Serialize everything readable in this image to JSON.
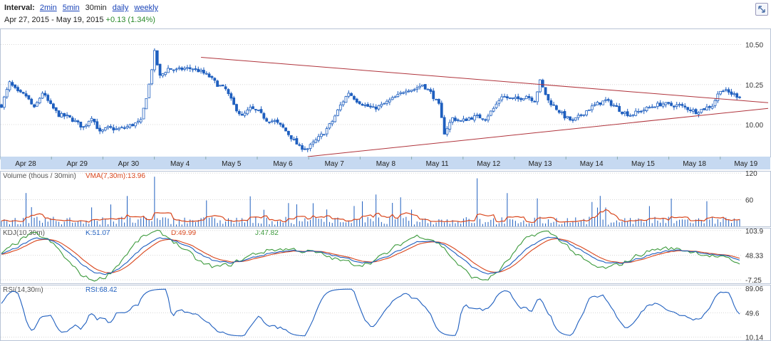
{
  "interval": {
    "label": "Interval:",
    "options": [
      {
        "label": "2min",
        "active": false
      },
      {
        "label": "5min",
        "active": false
      },
      {
        "label": "30min",
        "active": true
      },
      {
        "label": "daily",
        "active": false
      },
      {
        "label": "weekly",
        "active": false
      }
    ]
  },
  "range": {
    "start": "Apr 27, 2015",
    "sep": "-",
    "end": "May 19, 2015",
    "change": "+0.13 (1.34%)"
  },
  "icons": {
    "expand": "expand-icon"
  },
  "colors": {
    "price": "#1f5fbf",
    "trend": "#b0343c",
    "axis_band": "#c6d9f1",
    "k": "#1f5fbf",
    "d": "#d9461c",
    "j": "#3c9a3c",
    "vma": "#d9461c",
    "grid": "#d8d8d8"
  },
  "chart_data": [
    {
      "type": "candlestick",
      "name": "price",
      "y_ticks": [
        10.0,
        10.25,
        10.5
      ],
      "y_tick_labels": [
        "10.00",
        "10.25",
        "10.50"
      ],
      "ylim": [
        9.8,
        10.6
      ],
      "x_labels": [
        "Apr 28",
        "Apr 29",
        "Apr 30",
        "May 4",
        "May 5",
        "May 6",
        "May 7",
        "May 8",
        "May 11",
        "May 12",
        "May 13",
        "May 14",
        "May 15",
        "May 18",
        "May 19"
      ],
      "close_path": [
        [
          0,
          10.12
        ],
        [
          3,
          10.26
        ],
        [
          6,
          10.2
        ],
        [
          9,
          10.18
        ],
        [
          12,
          10.1
        ],
        [
          15,
          10.2
        ],
        [
          18,
          10.12
        ],
        [
          21,
          10.06
        ],
        [
          24,
          10.05
        ],
        [
          27,
          10.02
        ],
        [
          30,
          9.98
        ],
        [
          33,
          10.05
        ],
        [
          36,
          9.95
        ],
        [
          39,
          9.98
        ],
        [
          42,
          9.97
        ],
        [
          45,
          9.98
        ],
        [
          48,
          10.0
        ],
        [
          51,
          10.02
        ],
        [
          54,
          10.25
        ],
        [
          56,
          10.45
        ],
        [
          58,
          10.3
        ],
        [
          61,
          10.35
        ],
        [
          64,
          10.34
        ],
        [
          67,
          10.35
        ],
        [
          70,
          10.35
        ],
        [
          73,
          10.33
        ],
        [
          76,
          10.3
        ],
        [
          79,
          10.25
        ],
        [
          82,
          10.22
        ],
        [
          85,
          10.12
        ],
        [
          88,
          10.05
        ],
        [
          91,
          10.1
        ],
        [
          94,
          10.08
        ],
        [
          97,
          10.03
        ],
        [
          100,
          10.02
        ],
        [
          103,
          9.98
        ],
        [
          106,
          9.92
        ],
        [
          109,
          9.86
        ],
        [
          112,
          9.85
        ],
        [
          115,
          9.9
        ],
        [
          118,
          9.95
        ],
        [
          121,
          10.02
        ],
        [
          124,
          10.12
        ],
        [
          127,
          10.2
        ],
        [
          130,
          10.15
        ],
        [
          133,
          10.12
        ],
        [
          136,
          10.1
        ],
        [
          139,
          10.12
        ],
        [
          142,
          10.15
        ],
        [
          145,
          10.18
        ],
        [
          148,
          10.22
        ],
        [
          151,
          10.22
        ],
        [
          154,
          10.25
        ],
        [
          157,
          10.2
        ],
        [
          160,
          10.12
        ],
        [
          162,
          9.95
        ],
        [
          165,
          10.04
        ],
        [
          168,
          10.02
        ],
        [
          171,
          10.04
        ],
        [
          174,
          10.05
        ],
        [
          177,
          10.04
        ],
        [
          180,
          10.1
        ],
        [
          183,
          10.18
        ],
        [
          186,
          10.16
        ],
        [
          189,
          10.16
        ],
        [
          192,
          10.18
        ],
        [
          195,
          10.15
        ],
        [
          197,
          10.27
        ],
        [
          200,
          10.15
        ],
        [
          203,
          10.1
        ],
        [
          206,
          10.05
        ],
        [
          209,
          10.02
        ],
        [
          212,
          10.06
        ],
        [
          215,
          10.1
        ],
        [
          218,
          10.13
        ],
        [
          221,
          10.15
        ],
        [
          224,
          10.12
        ],
        [
          227,
          10.08
        ],
        [
          230,
          10.06
        ],
        [
          233,
          10.08
        ],
        [
          236,
          10.1
        ],
        [
          239,
          10.12
        ],
        [
          242,
          10.13
        ],
        [
          245,
          10.12
        ],
        [
          248,
          10.12
        ],
        [
          251,
          10.1
        ],
        [
          254,
          10.08
        ],
        [
          257,
          10.1
        ],
        [
          260,
          10.12
        ],
        [
          263,
          10.22
        ],
        [
          266,
          10.2
        ],
        [
          269,
          10.18
        ]
      ],
      "trendlines": [
        {
          "from": [
            73,
            10.42
          ],
          "to": [
            270,
            10.11
          ]
        },
        {
          "from": [
            112,
            9.8
          ],
          "to": [
            270,
            10.11
          ]
        }
      ]
    },
    {
      "type": "bar",
      "name": "Volume",
      "title": "Volume (thous / 30min)",
      "legend": "VMA(7,30m):13.96",
      "y_ticks": [
        60,
        120
      ],
      "y_tick_labels": [
        "60",
        "120"
      ],
      "ylim": [
        0,
        125
      ]
    },
    {
      "type": "line",
      "name": "KDJ",
      "title": "KDJ(10,30m)",
      "series": [
        {
          "name": "K:51.07",
          "key": "k"
        },
        {
          "name": "D:49.99",
          "key": "d"
        },
        {
          "name": "J:47.82",
          "key": "j"
        }
      ],
      "y_ticks": [
        -7.25,
        48.33,
        103.9
      ],
      "y_tick_labels": [
        "-7.25",
        "48.33",
        "103.9"
      ],
      "ylim": [
        -15,
        110
      ]
    },
    {
      "type": "line",
      "name": "RSI",
      "title": "RSI(14,30m)",
      "series": [
        {
          "name": "RSI:68.42"
        }
      ],
      "y_ticks": [
        10.14,
        49.6,
        89.06
      ],
      "y_tick_labels": [
        "10.14",
        "49.6",
        "89.06"
      ],
      "ylim": [
        5,
        95
      ]
    }
  ]
}
